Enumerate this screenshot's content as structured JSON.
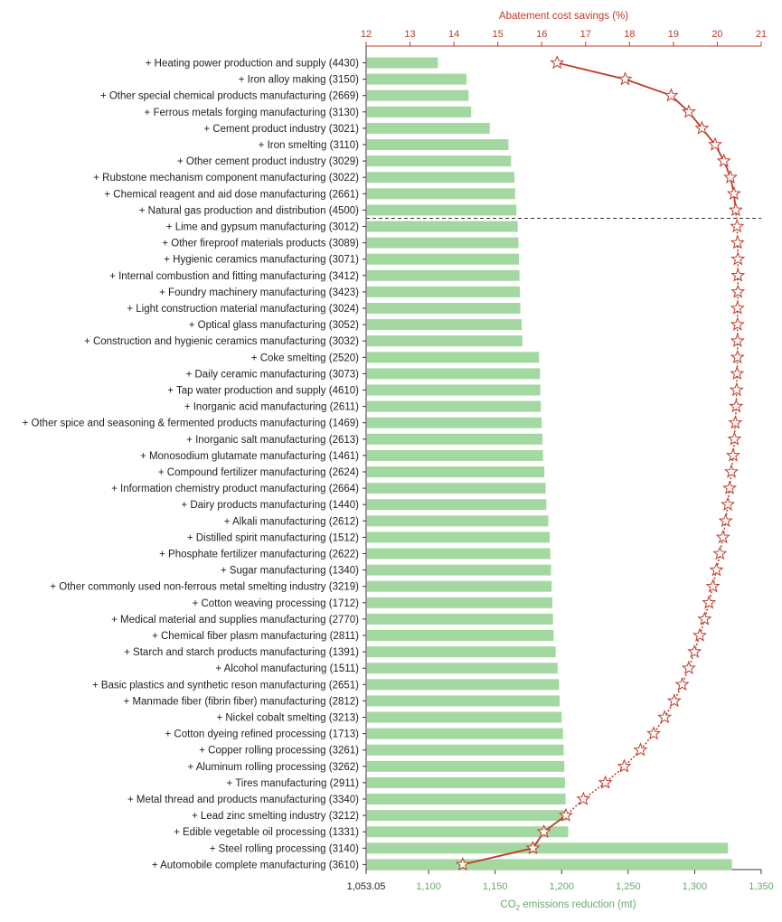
{
  "chart_data": {
    "type": "bar",
    "orientation": "horizontal",
    "categories": [
      "+ Heating power production and supply (4430)",
      "+ Iron alloy making (3150)",
      "+ Other special chemical products manufacturing (2669)",
      "+ Ferrous metals forging manufacturing (3130)",
      "+ Cement product industry (3021)",
      "+ Iron smelting (3110)",
      "+ Other cement product industry (3029)",
      "+ Rubstone mechanism component manufacturing (3022)",
      "+ Chemical reagent and aid dose manufacturing (2661)",
      "+ Natural gas production and distribution (4500)",
      "+ Lime and gypsum manufacturing (3012)",
      "+ Other fireproof materials products (3089)",
      "+ Hygienic ceramics manufacturing (3071)",
      "+ Internal combustion and fitting manufacturing (3412)",
      "+ Foundry machinery manufacturing (3423)",
      "+ Light construction material manufacturing (3024)",
      "+ Optical glass manufacturing (3052)",
      "+ Construction and hygienic ceramics manufacturing (3032)",
      "+ Coke smelting (2520)",
      "+ Daily ceramic manufacturing (3073)",
      "+ Tap water production and supply (4610)",
      "+ Inorganic acid manufacturing (2611)",
      "+ Other spice and seasoning & fermented products manufacturing (1469)",
      "+ Inorganic salt manufacturing (2613)",
      "+ Monosodium glutamate manufacturing (1461)",
      "+ Compound fertilizer manufacturing (2624)",
      "+ Information chemistry product manufacturing (2664)",
      "+ Dairy products manufacturing (1440)",
      "+ Alkali manufacturing (2612)",
      "+ Distilled spirit manufacturing (1512)",
      "+ Phosphate fertilizer manufacturing (2622)",
      "+ Sugar manufacturing (1340)",
      "+ Other commonly used non-ferrous metal smelting industry (3219)",
      "+ Cotton weaving processing (1712)",
      "+ Medical material and supplies manufacturing (2770)",
      "+ Chemical fiber plasm manufacturing (2811)",
      "+ Starch and starch products manufacturing (1391)",
      "+ Alcohol manufacturing (1511)",
      "+ Basic plastics and synthetic reson manufacturing (2651)",
      "+ Manmade fiber (fibrin fiber) manufacturing (2812)",
      "+ Nickel cobalt smelting (3213)",
      "+ Cotton dyeing refined processing (1713)",
      "+ Copper rolling processing (3261)",
      "+ Aluminum rolling processing (3262)",
      "+ Tires manufacturing (2911)",
      "+ Metal thread and products manufacturing (3340)",
      "+ Lead zinc smelting industry (3212)",
      "+ Edible vegetable oil processing (1331)",
      "+ Steel rolling processing (3140)",
      "+ Automobile complete manufacturing (3610)"
    ],
    "series": [
      {
        "axis": "bottom",
        "values": [
          1107,
          1128.5,
          1130,
          1132,
          1146,
          1160,
          1162,
          1164.5,
          1165,
          1166,
          1167,
          1167.5,
          1168,
          1168.3,
          1168.6,
          1169,
          1170,
          1170.5,
          1183,
          1183.7,
          1184,
          1184.4,
          1185,
          1185.5,
          1186,
          1187,
          1188,
          1188.5,
          1190,
          1191,
          1191.5,
          1192,
          1192.5,
          1193,
          1193.5,
          1194,
          1195.5,
          1197,
          1198,
          1198.5,
          1200,
          1201,
          1201.5,
          1202,
          1202.5,
          1203,
          1204,
          1205,
          1325,
          1328
        ]
      },
      {
        "axis": "top",
        "values": [
          16.35,
          17.9,
          18.95,
          19.35,
          19.65,
          19.95,
          20.15,
          20.3,
          20.38,
          20.42,
          20.45,
          20.46,
          20.47,
          20.47,
          20.47,
          20.46,
          20.46,
          20.46,
          20.46,
          20.45,
          20.44,
          20.43,
          20.41,
          20.39,
          20.36,
          20.32,
          20.28,
          20.24,
          20.19,
          20.13,
          20.06,
          19.98,
          19.9,
          19.81,
          19.71,
          19.6,
          19.48,
          19.35,
          19.2,
          19.02,
          18.8,
          18.55,
          18.25,
          17.88,
          17.45,
          16.95,
          16.55,
          16.05,
          15.8,
          14.2
        ]
      }
    ],
    "threshold_after_index": 9,
    "top_axis": {
      "title": "Abatement cost savings (%)",
      "min": 12,
      "max": 21,
      "ticks": [
        "12",
        "13",
        "14",
        "15",
        "16",
        "17",
        "18",
        "19",
        "20",
        "21"
      ]
    },
    "bottom_axis": {
      "min": 1053.05,
      "max": 1350,
      "ticks": [
        {
          "value": 1053.05,
          "label": "1,053.05"
        },
        {
          "value": 1100,
          "label": "1,100"
        },
        {
          "value": 1150,
          "label": "1,150"
        },
        {
          "value": 1200,
          "label": "1,200"
        },
        {
          "value": 1250,
          "label": "1,250"
        },
        {
          "value": 1300,
          "label": "1,300"
        },
        {
          "value": 1350,
          "label": "1,350"
        }
      ],
      "title_prefix": "CO",
      "title_sub": "2",
      "title_suffix": " emissions reduction (mt)"
    },
    "colors": {
      "bar": "#a3d9a0",
      "line": "#c0392b",
      "top_axis": "#c0392b",
      "bottom_axis": "#6aa86a",
      "threshold": "#333333"
    }
  }
}
